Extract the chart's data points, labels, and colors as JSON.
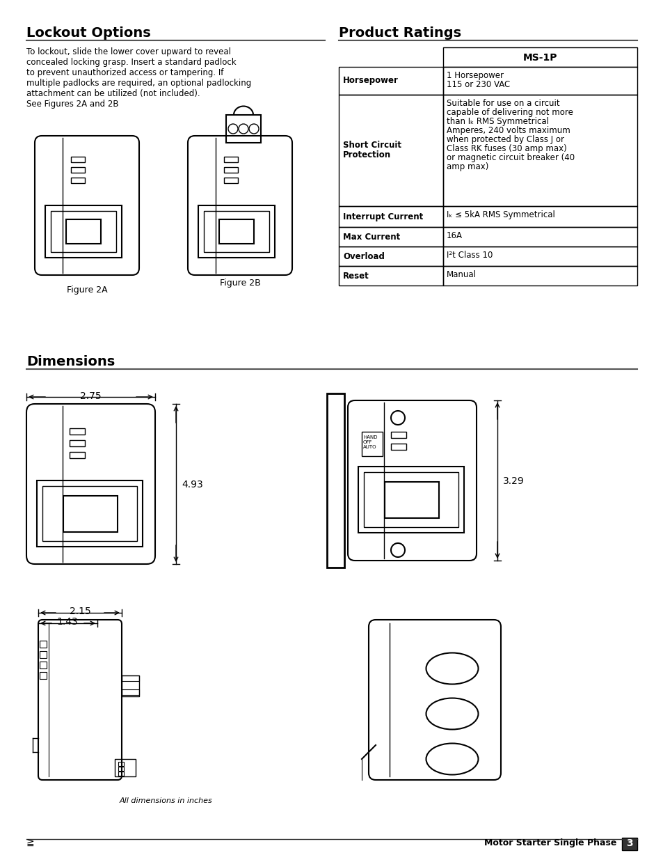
{
  "page_title_left": "Lockout Options",
  "page_title_right": "Product Ratings",
  "section_dimensions": "Dimensions",
  "lockout_text": "To lockout, slide the lower cover upward to reveal\nconcealed locking grasp. Insert a standard padlock\nto prevent unauthorized access or tampering. If\nmultiple padlocks are required, an optional padlocking\nattachment can be utilized (not included).\nSee Figures 2A and 2B",
  "fig2a_label": "Figure 2A",
  "fig2b_label": "Figure 2B",
  "table_header": "MS-1P",
  "table_rows": [
    [
      "Horsepower",
      "1 Horsepower\n115 or 230 VAC"
    ],
    [
      "Short Circuit\nProtection",
      "Suitable for use on a circuit\ncapable of delivering not more\nthan Iₖ RMS Symmetrical\nAmperes, 240 volts maximum\nwhen protected by Class J or\nClass RK fuses (30 amp max)\nor magnetic circuit breaker (40\namp max)"
    ],
    [
      "Interrupt Current",
      "Iₖ ≤ 5kA RMS Symmetrical"
    ],
    [
      "Max Current",
      "16A"
    ],
    [
      "Overload",
      "I²t Class 10"
    ],
    [
      "Reset",
      "Manual"
    ]
  ],
  "dim_275": "2.75",
  "dim_493": "4.93",
  "dim_329": "3.29",
  "dim_215": "2.15",
  "dim_143": "1.43",
  "dim_note": "All dimensions in inches",
  "footer_left": "",
  "footer_right": "Motor Starter Single Phase",
  "page_num": "3",
  "bg_color": "#ffffff",
  "text_color": "#000000",
  "line_color": "#555555"
}
